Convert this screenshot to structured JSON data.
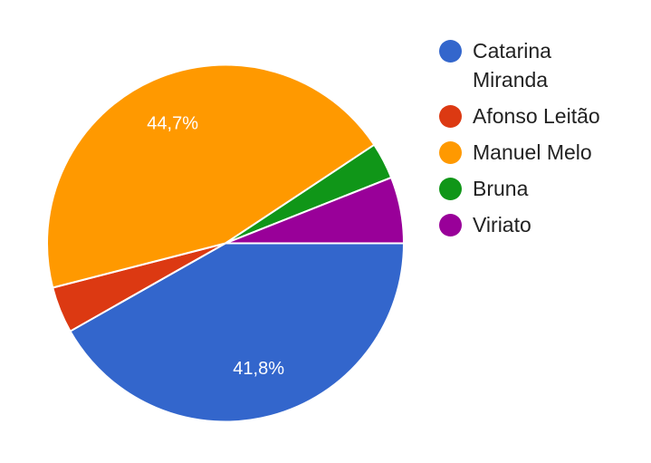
{
  "chart_data": {
    "type": "pie",
    "legend_position": "right",
    "slices": [
      {
        "name": "Catarina Miranda",
        "value": 41.8,
        "label": "41,8%",
        "color": "#3366cc"
      },
      {
        "name": "Afonso Leitão",
        "value": 4.2,
        "label": "",
        "color": "#dc3912"
      },
      {
        "name": "Manuel Melo",
        "value": 44.7,
        "label": "44,7%",
        "color": "#ff9900"
      },
      {
        "name": "Bruna",
        "value": 3.3,
        "label": "",
        "color": "#109618"
      },
      {
        "name": "Viriato",
        "value": 6.0,
        "label": "",
        "color": "#990099"
      }
    ]
  },
  "legend": {
    "items": [
      {
        "label": "Catarina\nMiranda",
        "icon": "circle-swatch",
        "color": "#3366cc"
      },
      {
        "label": "Afonso Leitão",
        "icon": "circle-swatch",
        "color": "#dc3912"
      },
      {
        "label": "Manuel Melo",
        "icon": "circle-swatch",
        "color": "#ff9900"
      },
      {
        "label": "Bruna",
        "icon": "circle-swatch",
        "color": "#109618"
      },
      {
        "label": "Viriato",
        "icon": "circle-swatch",
        "color": "#990099"
      }
    ]
  }
}
